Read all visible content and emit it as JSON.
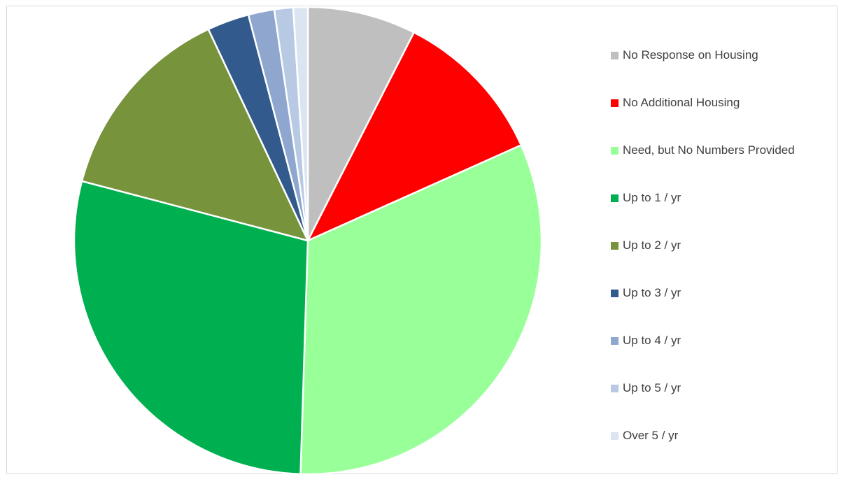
{
  "chart_data": {
    "type": "pie",
    "title": "",
    "legend_position": "right",
    "start_angle_deg": 0,
    "direction": "clockwise",
    "slices": [
      {
        "label": "No Response on Housing",
        "value": 7.5,
        "color": "#bfbfbf"
      },
      {
        "label": "No Additional Housing",
        "value": 10.8,
        "color": "#ff0000"
      },
      {
        "label": "Need, but No Numbers Provided",
        "value": 32.2,
        "color": "#99ff99"
      },
      {
        "label": "Up to 1 / yr",
        "value": 28.6,
        "color": "#00b050"
      },
      {
        "label": "Up to 2 / yr",
        "value": 13.9,
        "color": "#77933c"
      },
      {
        "label": "Up to 3 / yr",
        "value": 2.9,
        "color": "#335a8c"
      },
      {
        "label": "Up to 4 / yr",
        "value": 1.8,
        "color": "#8fa6cf"
      },
      {
        "label": "Up to 5 / yr",
        "value": 1.3,
        "color": "#b8c9e4"
      },
      {
        "label": "Over 5 / yr",
        "value": 1.0,
        "color": "#dbe5f1"
      }
    ]
  }
}
